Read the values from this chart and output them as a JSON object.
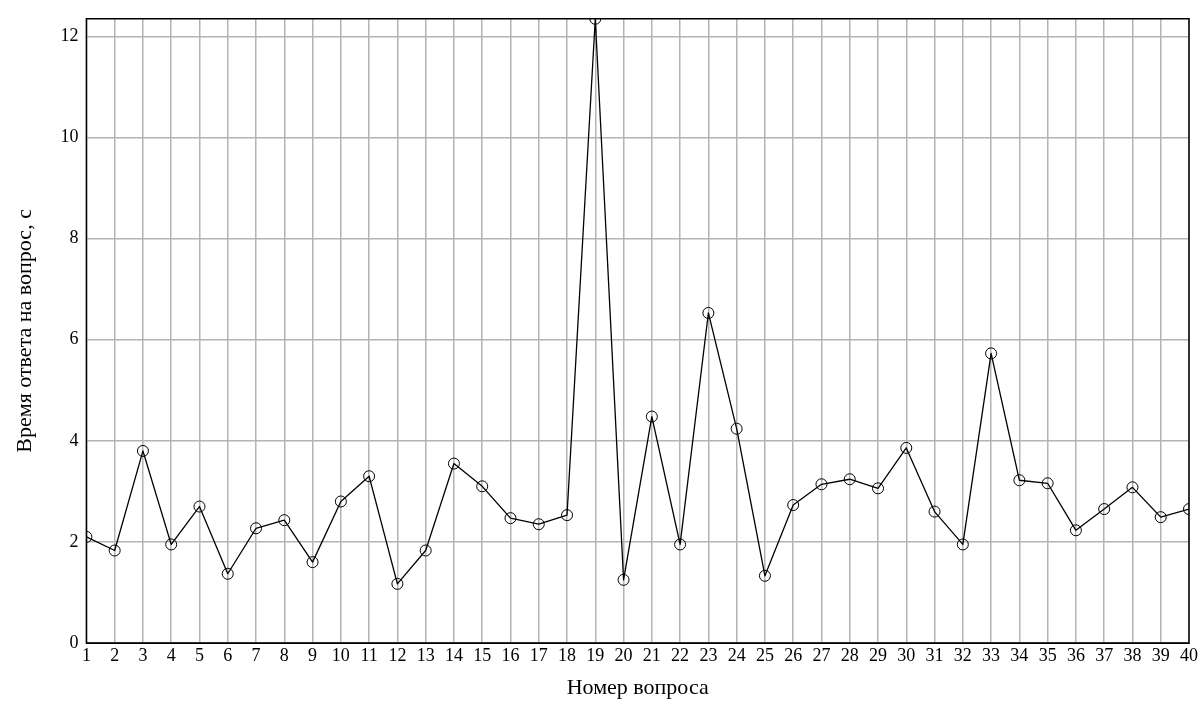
{
  "chart_data": {
    "type": "line",
    "xlabel": "Номер вопроса",
    "ylabel": "Время ответа на вопрос, с",
    "x": [
      1,
      2,
      3,
      4,
      5,
      6,
      7,
      8,
      9,
      10,
      11,
      12,
      13,
      14,
      15,
      16,
      17,
      18,
      19,
      20,
      21,
      22,
      23,
      24,
      25,
      26,
      27,
      28,
      29,
      30,
      31,
      32,
      33,
      34,
      35,
      36,
      37,
      38,
      39,
      40
    ],
    "series": [
      {
        "color": "#000000",
        "values": [
          2.1,
          1.83,
          3.8,
          1.95,
          2.7,
          1.37,
          2.27,
          2.43,
          1.6,
          2.8,
          3.3,
          1.17,
          1.83,
          3.55,
          3.1,
          2.47,
          2.35,
          2.53,
          12.35,
          1.25,
          4.48,
          1.95,
          6.53,
          4.24,
          1.33,
          2.73,
          3.14,
          3.24,
          3.06,
          3.86,
          2.6,
          1.95,
          5.73,
          3.22,
          3.16,
          2.23,
          2.65,
          3.08,
          2.49,
          2.65
        ]
      }
    ],
    "xlim": [
      1,
      40
    ],
    "xticks": [
      1,
      2,
      3,
      4,
      5,
      6,
      7,
      8,
      9,
      10,
      11,
      12,
      13,
      14,
      15,
      16,
      17,
      18,
      19,
      20,
      21,
      22,
      23,
      24,
      25,
      26,
      27,
      28,
      29,
      30,
      31,
      32,
      33,
      34,
      35,
      36,
      37,
      38,
      39,
      40
    ],
    "ylim": [
      0,
      12.35
    ],
    "yticks": [
      0,
      2,
      4,
      6,
      8,
      10,
      12
    ],
    "grid": true,
    "legend": false,
    "marker": "circle",
    "line_style": "solid"
  }
}
